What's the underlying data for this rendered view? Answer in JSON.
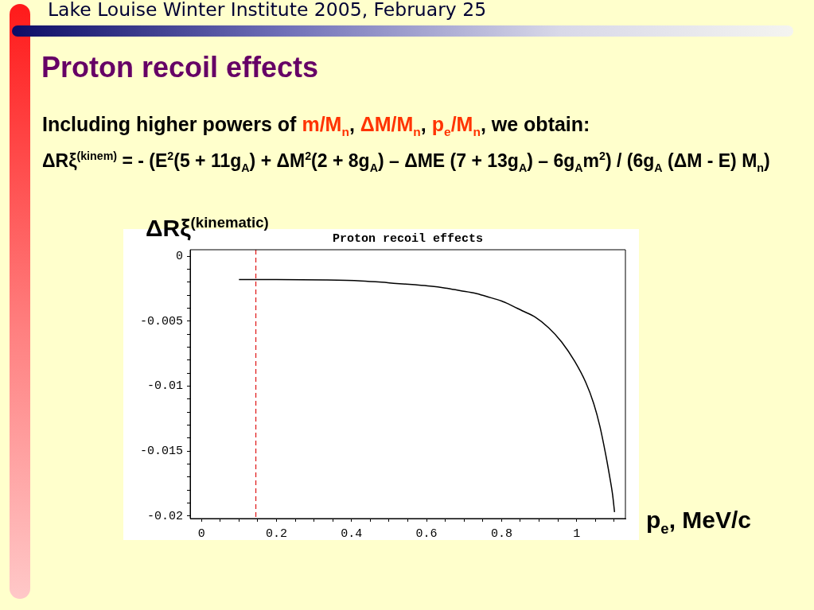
{
  "chart_data": {
    "type": "line",
    "title": "Proton recoil effects",
    "xlabel": "p$_{e}$, MeV/c",
    "ylabel": "ΔRξ$^{(kinematic)}$",
    "annotations": [
      "Lake Louise Winter Institute 2005, February 25",
      "Proton recoil effects",
      "Including higher powers of m/M$_{n}$, ΔM/M$_{n}$, p$_{e}$/M$_{n}$, we obtain:",
      "ΔRξ$^{(kinem)}$ = - (E$^{2}$(5 + 11g$_{A}$) + ΔM$^{2}$(2 + 8g$_{A}$) – ΔME (7 + 13g$_{A}$) – 6g$_{A}$m$^{2}$) / (6g$_{A}$ (ΔM - E) M$_{n}$)"
    ],
    "x": [
      0.1,
      0.2,
      0.33,
      0.425,
      0.48,
      0.52,
      0.57,
      0.61,
      0.65,
      0.69,
      0.73,
      0.76,
      0.8,
      0.82,
      0.855,
      0.89,
      0.925,
      0.96,
      0.995,
      1.024,
      1.045,
      1.062,
      1.077,
      1.087,
      1.096,
      1.101
    ],
    "values": [
      -0.0018,
      -0.0018,
      -0.00183,
      -0.0019,
      -0.002,
      -0.0021,
      -0.0022,
      -0.0023,
      -0.00245,
      -0.00265,
      -0.00285,
      -0.0031,
      -0.00345,
      -0.0037,
      -0.0042,
      -0.0047,
      -0.0055,
      -0.0066,
      -0.0081,
      -0.0097,
      -0.0113,
      -0.0131,
      -0.0152,
      -0.0168,
      -0.0184,
      -0.0197
    ],
    "color": "#000000",
    "marker": "none",
    "xlim": [
      -0.03,
      1.13
    ],
    "ylim": [
      -0.0202,
      0.0005
    ],
    "xticks": [
      0,
      {
        "value": 0.05,
        "label": null
      },
      {
        "value": 0.1,
        "label": null
      },
      {
        "value": 0.15,
        "label": null
      },
      0.2,
      {
        "value": 0.25,
        "label": null
      },
      {
        "value": 0.3,
        "label": null
      },
      {
        "value": 0.35,
        "label": null
      },
      0.4,
      {
        "value": 0.45,
        "label": null
      },
      {
        "value": 0.5,
        "label": null
      },
      {
        "value": 0.55,
        "label": null
      },
      0.6,
      {
        "value": 0.65,
        "label": null
      },
      {
        "value": 0.7,
        "label": null
      },
      {
        "value": 0.75,
        "label": null
      },
      0.8,
      {
        "value": 0.85,
        "label": null
      },
      {
        "value": 0.9,
        "label": null
      },
      {
        "value": 0.95,
        "label": null
      },
      1,
      {
        "value": 1.05,
        "label": null
      },
      {
        "value": 1.1,
        "label": null
      }
    ],
    "yticks": [
      -0.02,
      {
        "value": -0.019,
        "label": null
      },
      {
        "value": -0.018,
        "label": null
      },
      {
        "value": -0.017,
        "label": null
      },
      {
        "value": -0.016,
        "label": null
      },
      -0.015,
      {
        "value": -0.014,
        "label": null
      },
      {
        "value": -0.013,
        "label": null
      },
      {
        "value": -0.012,
        "label": null
      },
      {
        "value": -0.011,
        "label": null
      },
      -0.01,
      {
        "value": -0.009,
        "label": null
      },
      {
        "value": -0.008,
        "label": null
      },
      {
        "value": -0.007,
        "label": null
      },
      {
        "value": -0.006,
        "label": null
      },
      -0.005,
      {
        "value": -0.004,
        "label": null
      },
      {
        "value": -0.003,
        "label": null
      },
      {
        "value": -0.002,
        "label": null
      },
      {
        "value": -0.001,
        "label": null
      },
      0
    ],
    "ref_lines": [
      {
        "axis": "x",
        "value": 0.145,
        "color": "#e02020",
        "line_style": "dashed"
      }
    ]
  }
}
